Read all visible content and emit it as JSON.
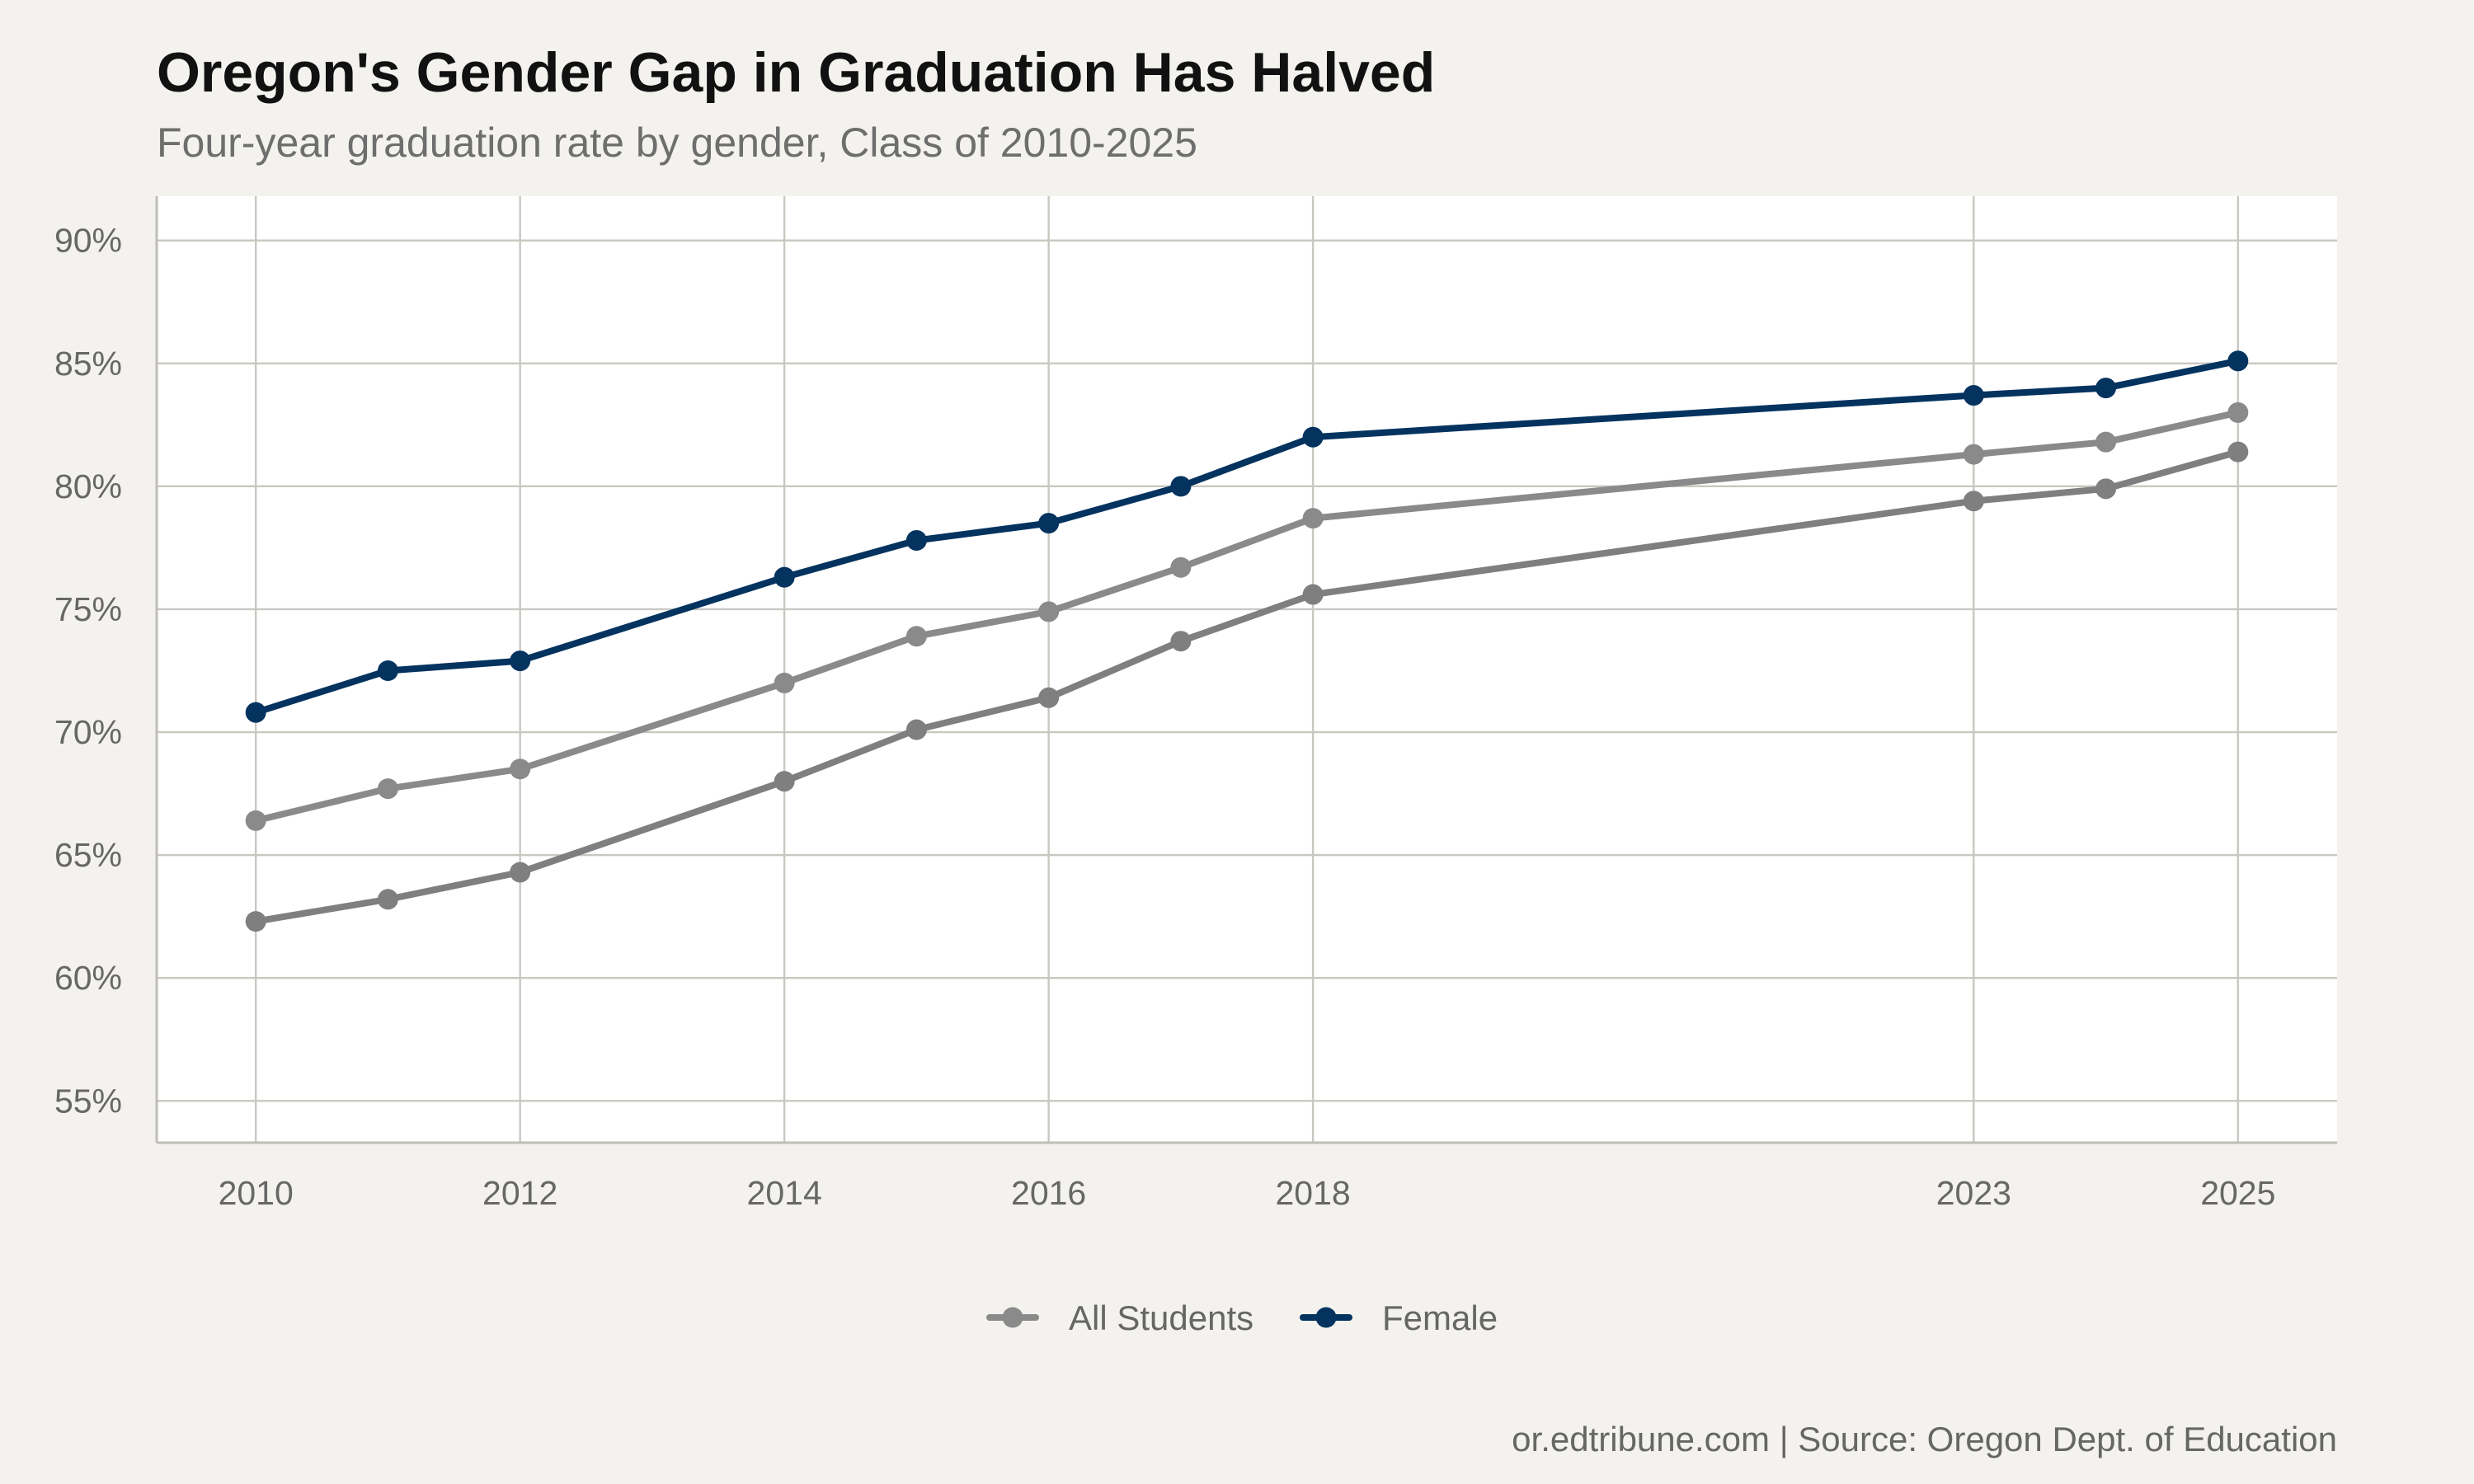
{
  "chart_data": {
    "type": "line",
    "title": "Oregon's Gender Gap in Graduation Has Halved",
    "subtitle": "Four-year graduation rate by gender, Class of 2010-2025",
    "caption": "or.edtribune.com | Source: Oregon Dept. of Education",
    "x": [
      2010,
      2011,
      2012,
      2014,
      2015,
      2016,
      2017,
      2018,
      2023,
      2024,
      2025
    ],
    "x_ticks": [
      2010,
      2012,
      2014,
      2016,
      2018,
      2023,
      2025
    ],
    "x_tick_labels": [
      "2010",
      "2012",
      "2014",
      "2016",
      "2018",
      "2023",
      "2025"
    ],
    "xlim": [
      2009.25,
      2025.75
    ],
    "y_ticks": [
      55,
      60,
      65,
      70,
      75,
      80,
      85,
      90
    ],
    "y_tick_labels": [
      "55%",
      "60%",
      "65%",
      "70%",
      "75%",
      "80%",
      "85%",
      "90%"
    ],
    "ylim": [
      53.3,
      91.8
    ],
    "grid": true,
    "legend_position": "bottom",
    "series": [
      {
        "name": "All Students",
        "color": "#8a8a8a",
        "in_legend": true,
        "values": [
          66.4,
          67.7,
          68.5,
          72.0,
          73.9,
          74.9,
          76.7,
          78.7,
          81.3,
          81.8,
          83.0
        ]
      },
      {
        "name": "",
        "color": "#7f7f7f",
        "in_legend": false,
        "values": [
          62.3,
          63.2,
          64.3,
          68.0,
          70.1,
          71.4,
          73.7,
          75.6,
          79.4,
          79.9,
          81.4
        ]
      },
      {
        "name": "Female",
        "color": "#04335f",
        "in_legend": true,
        "values": [
          70.8,
          72.5,
          72.9,
          76.3,
          77.8,
          78.5,
          80.0,
          82.0,
          83.7,
          84.0,
          85.1
        ]
      }
    ]
  }
}
